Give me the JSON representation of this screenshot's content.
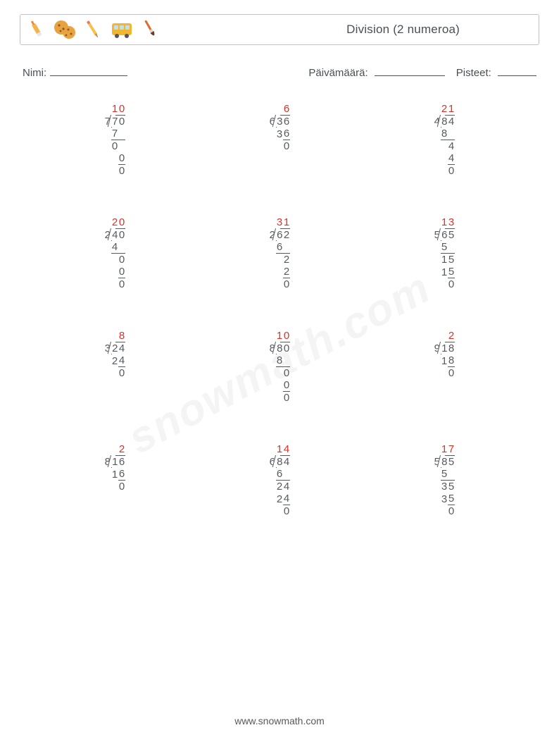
{
  "header": {
    "title": "Division (2 numeroa)",
    "icons": [
      "marker",
      "cookie",
      "pencil",
      "bus",
      "brush"
    ],
    "icon_colors": {
      "marker_body": "#f6b24a",
      "marker_tip": "#f08a3a",
      "cookie": "#e8a33e",
      "cookie_chip": "#8a5a2a",
      "pencil_body": "#f6c24a",
      "pencil_tip": "#d88b3a",
      "pencil_eraser": "#e37a7a",
      "bus_body": "#f3b62f",
      "bus_window": "#bfe0ef",
      "bus_wheel": "#555",
      "brush_handle": "#e06a2a",
      "brush_fer": "#d8d8d8",
      "brush_tip": "#6a3d2a"
    }
  },
  "info": {
    "name_label": "Nimi:",
    "date_label": "Päivämäärä:",
    "score_label": "Pisteet:",
    "name_blank_w": 110,
    "date_blank_w": 100,
    "score_blank_w": 55
  },
  "style": {
    "text_color": "#555a60",
    "answer_color": "#d8322b",
    "border_color": "#bfc3c8",
    "line_color": "#555a60",
    "font_size_problem": 15,
    "font_size_title": 17,
    "font_size_info": 15,
    "digit_cell_w": 10,
    "line_h": 17,
    "grid_cols": 3,
    "grid_rows": 4,
    "row_gap": 56
  },
  "watermark": "snowmath.com",
  "footer": "www.snowmath.com",
  "problems": [
    {
      "divisor": "7",
      "dividend": [
        "7",
        "0"
      ],
      "quot": [
        "1",
        "0"
      ],
      "steps": [
        {
          "v": [
            "7",
            ""
          ],
          "b": [
            0
          ]
        },
        {
          "v": [
            "0",
            ""
          ],
          "t": [
            0,
            1
          ]
        },
        {
          "v": [
            "",
            "0"
          ],
          "b": []
        },
        {
          "v": [
            "",
            "0"
          ],
          "t": [
            1
          ]
        }
      ]
    },
    {
      "divisor": "6",
      "dividend": [
        "3",
        "6"
      ],
      "quot": [
        "",
        "6"
      ],
      "steps": [
        {
          "v": [
            "3",
            "6"
          ],
          "b": []
        },
        {
          "v": [
            "",
            "0"
          ],
          "t": [
            1
          ]
        }
      ]
    },
    {
      "divisor": "4",
      "dividend": [
        "8",
        "4"
      ],
      "quot": [
        "2",
        "1"
      ],
      "steps": [
        {
          "v": [
            "8",
            ""
          ],
          "b": []
        },
        {
          "v": [
            "",
            "4"
          ],
          "t": [
            0,
            1
          ]
        },
        {
          "v": [
            "",
            "4"
          ],
          "b": []
        },
        {
          "v": [
            "",
            "0"
          ],
          "t": [
            1
          ]
        }
      ]
    },
    {
      "divisor": "2",
      "dividend": [
        "4",
        "0"
      ],
      "quot": [
        "2",
        "0"
      ],
      "steps": [
        {
          "v": [
            "4",
            ""
          ],
          "b": []
        },
        {
          "v": [
            "",
            "0"
          ],
          "t": [
            0,
            1
          ]
        },
        {
          "v": [
            "",
            "0"
          ],
          "b": []
        },
        {
          "v": [
            "",
            "0"
          ],
          "t": [
            1
          ]
        }
      ]
    },
    {
      "divisor": "2",
      "dividend": [
        "6",
        "2"
      ],
      "quot": [
        "3",
        "1"
      ],
      "steps": [
        {
          "v": [
            "6",
            ""
          ],
          "b": []
        },
        {
          "v": [
            "",
            "2"
          ],
          "t": [
            0,
            1
          ]
        },
        {
          "v": [
            "",
            "2"
          ],
          "b": []
        },
        {
          "v": [
            "",
            "0"
          ],
          "t": [
            1
          ]
        }
      ]
    },
    {
      "divisor": "5",
      "dividend": [
        "6",
        "5"
      ],
      "quot": [
        "1",
        "3"
      ],
      "steps": [
        {
          "v": [
            "5",
            ""
          ],
          "b": []
        },
        {
          "v": [
            "1",
            "5"
          ],
          "t": [
            0,
            1
          ]
        },
        {
          "v": [
            "1",
            "5"
          ],
          "b": []
        },
        {
          "v": [
            "",
            "0"
          ],
          "t": [
            1
          ]
        }
      ]
    },
    {
      "divisor": "3",
      "dividend": [
        "2",
        "4"
      ],
      "quot": [
        "",
        "8"
      ],
      "steps": [
        {
          "v": [
            "2",
            "4"
          ],
          "b": []
        },
        {
          "v": [
            "",
            "0"
          ],
          "t": [
            1
          ]
        }
      ]
    },
    {
      "divisor": "8",
      "dividend": [
        "8",
        "0"
      ],
      "quot": [
        "1",
        "0"
      ],
      "steps": [
        {
          "v": [
            "8",
            ""
          ],
          "b": []
        },
        {
          "v": [
            "",
            "0"
          ],
          "t": [
            0,
            1
          ]
        },
        {
          "v": [
            "",
            "0"
          ],
          "b": []
        },
        {
          "v": [
            "",
            "0"
          ],
          "t": [
            1
          ]
        }
      ]
    },
    {
      "divisor": "9",
      "dividend": [
        "1",
        "8"
      ],
      "quot": [
        "",
        "2"
      ],
      "steps": [
        {
          "v": [
            "1",
            "8"
          ],
          "b": []
        },
        {
          "v": [
            "",
            "0"
          ],
          "t": [
            1
          ]
        }
      ]
    },
    {
      "divisor": "8",
      "dividend": [
        "1",
        "6"
      ],
      "quot": [
        "",
        "2"
      ],
      "steps": [
        {
          "v": [
            "1",
            "6"
          ],
          "b": []
        },
        {
          "v": [
            "",
            "0"
          ],
          "t": [
            1
          ]
        }
      ]
    },
    {
      "divisor": "6",
      "dividend": [
        "8",
        "4"
      ],
      "quot": [
        "1",
        "4"
      ],
      "steps": [
        {
          "v": [
            "6",
            ""
          ],
          "b": []
        },
        {
          "v": [
            "2",
            "4"
          ],
          "t": [
            0,
            1
          ]
        },
        {
          "v": [
            "2",
            "4"
          ],
          "b": []
        },
        {
          "v": [
            "",
            "0"
          ],
          "t": [
            1
          ]
        }
      ]
    },
    {
      "divisor": "5",
      "dividend": [
        "8",
        "5"
      ],
      "quot": [
        "1",
        "7"
      ],
      "steps": [
        {
          "v": [
            "5",
            ""
          ],
          "b": []
        },
        {
          "v": [
            "3",
            "5"
          ],
          "t": [
            0,
            1
          ]
        },
        {
          "v": [
            "3",
            "5"
          ],
          "b": []
        },
        {
          "v": [
            "",
            "0"
          ],
          "t": [
            1
          ]
        }
      ]
    }
  ]
}
